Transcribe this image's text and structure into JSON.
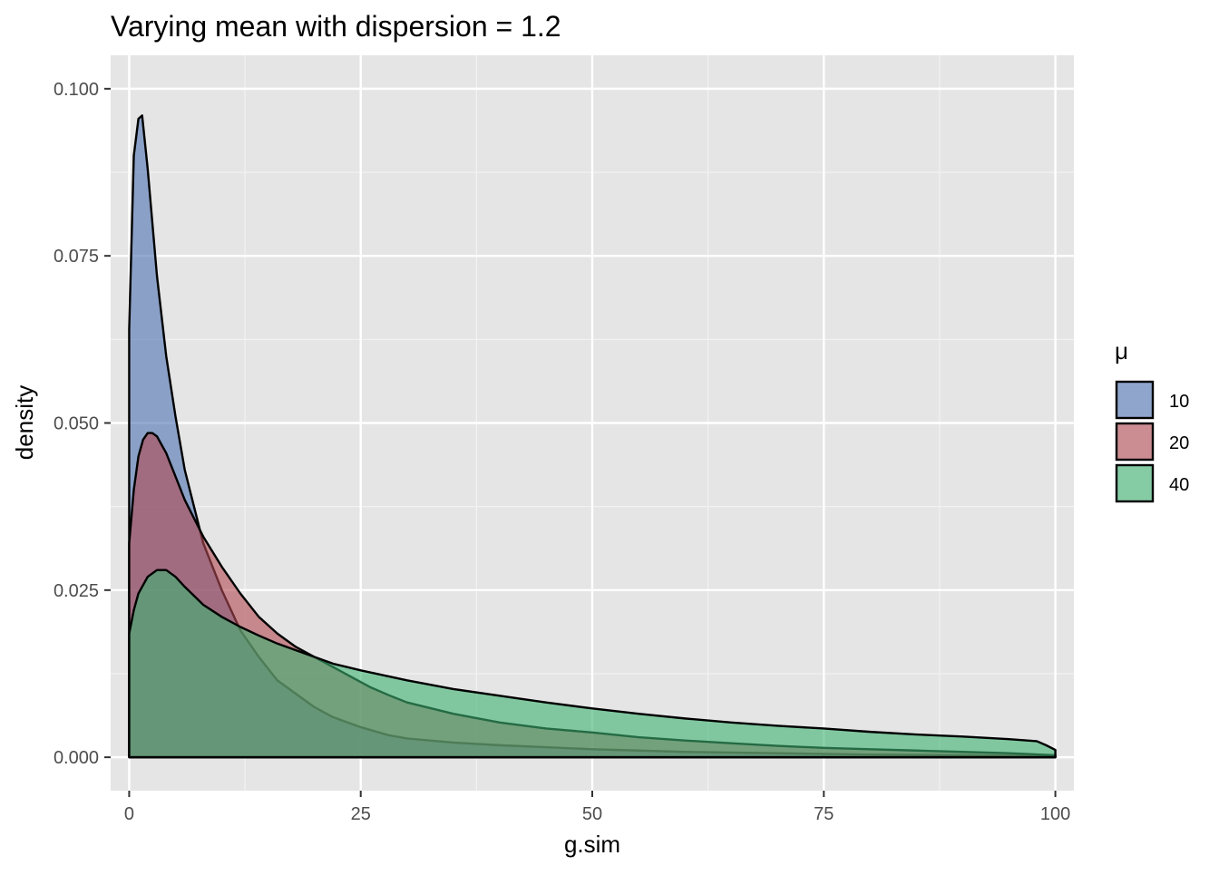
{
  "chart_data": {
    "type": "area",
    "title": "Varying mean with dispersion = 1.2",
    "xlabel": "g.sim",
    "ylabel": "density",
    "xlim": [
      -2,
      102
    ],
    "ylim": [
      -0.005,
      0.105
    ],
    "x_ticks": [
      0,
      25,
      50,
      75,
      100
    ],
    "x_tick_labels": [
      "0",
      "25",
      "50",
      "75",
      "100"
    ],
    "y_ticks": [
      0,
      0.025,
      0.05,
      0.075,
      0.1
    ],
    "y_tick_labels": [
      "0.000",
      "0.025",
      "0.050",
      "0.075",
      "0.100"
    ],
    "grid": true,
    "legend": {
      "title": "μ",
      "position": "right"
    },
    "series": [
      {
        "name": "10",
        "color": "#4c72b0",
        "x": [
          0,
          0.5,
          1,
          1.4,
          2,
          3,
          4,
          5,
          6,
          8,
          10,
          12,
          14,
          16,
          18,
          20,
          22,
          25,
          28,
          30,
          35,
          40,
          45,
          50,
          55,
          60,
          70,
          80,
          90,
          100
        ],
        "y": [
          0.064,
          0.09,
          0.0955,
          0.096,
          0.088,
          0.072,
          0.06,
          0.051,
          0.043,
          0.032,
          0.025,
          0.019,
          0.015,
          0.0115,
          0.0095,
          0.0075,
          0.006,
          0.0045,
          0.0033,
          0.0028,
          0.0022,
          0.0018,
          0.0015,
          0.0012,
          0.001,
          0.0008,
          0.0006,
          0.0004,
          0.0003,
          0.0002
        ]
      },
      {
        "name": "20",
        "color": "#b04a52",
        "x": [
          0,
          0.5,
          1,
          1.5,
          2,
          2.5,
          3,
          4,
          5,
          6,
          8,
          10,
          12,
          14,
          16,
          18,
          20,
          22,
          24,
          26,
          28,
          30,
          35,
          40,
          45,
          50,
          55,
          60,
          65,
          70,
          75,
          80,
          85,
          90,
          95,
          100
        ],
        "y": [
          0.032,
          0.04,
          0.045,
          0.0475,
          0.0485,
          0.0485,
          0.048,
          0.0455,
          0.042,
          0.0385,
          0.033,
          0.0285,
          0.0245,
          0.021,
          0.0185,
          0.0165,
          0.015,
          0.0135,
          0.012,
          0.0105,
          0.0093,
          0.0082,
          0.0065,
          0.0052,
          0.0043,
          0.0037,
          0.003,
          0.0025,
          0.0021,
          0.0017,
          0.0014,
          0.0012,
          0.001,
          0.0008,
          0.0006,
          0.0003
        ]
      },
      {
        "name": "40",
        "color": "#3cb371",
        "x": [
          0,
          0.5,
          1,
          2,
          3,
          4,
          5,
          6,
          8,
          10,
          12,
          14,
          16,
          18,
          20,
          22,
          25,
          30,
          35,
          40,
          45,
          50,
          55,
          60,
          65,
          70,
          75,
          80,
          85,
          90,
          95,
          98,
          99,
          100
        ],
        "y": [
          0.0185,
          0.022,
          0.0245,
          0.027,
          0.028,
          0.028,
          0.027,
          0.0255,
          0.0228,
          0.021,
          0.0195,
          0.0182,
          0.017,
          0.016,
          0.015,
          0.014,
          0.013,
          0.0115,
          0.0102,
          0.0092,
          0.0082,
          0.0073,
          0.0065,
          0.0058,
          0.0052,
          0.0047,
          0.0043,
          0.0038,
          0.0034,
          0.0031,
          0.0027,
          0.0024,
          0.0018,
          0.0011
        ]
      }
    ]
  }
}
